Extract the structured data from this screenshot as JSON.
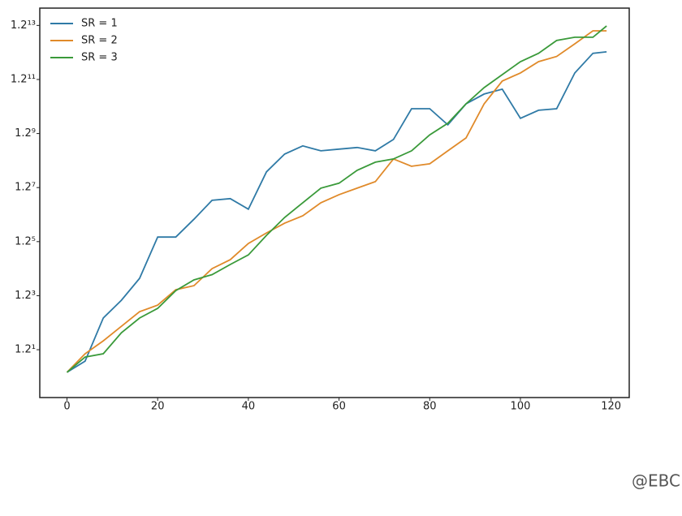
{
  "chart_data": {
    "type": "line",
    "x": [
      0,
      4,
      8,
      12,
      16,
      20,
      24,
      28,
      32,
      36,
      40,
      44,
      48,
      52,
      56,
      60,
      64,
      68,
      72,
      76,
      80,
      84,
      88,
      92,
      96,
      100,
      104,
      108,
      112,
      116,
      119
    ],
    "series": [
      {
        "name": "SR = 1",
        "color": "#2f7aa6",
        "values": [
          1.03,
          1.111,
          1.486,
          1.675,
          1.942,
          2.566,
          2.566,
          2.894,
          3.288,
          3.326,
          3.097,
          3.984,
          4.493,
          4.747,
          4.592,
          4.644,
          4.696,
          4.592,
          4.958,
          6.099,
          6.099,
          5.47,
          6.305,
          6.737,
          6.96,
          5.717,
          6.037,
          6.099,
          7.764,
          8.864,
          8.952
        ]
      },
      {
        "name": "SR = 2",
        "color": "#e08a2a",
        "values": [
          1.03,
          1.168,
          1.274,
          1.405,
          1.551,
          1.621,
          1.799,
          1.849,
          2.074,
          2.202,
          2.458,
          2.638,
          2.817,
          2.961,
          3.234,
          3.416,
          3.569,
          3.73,
          4.347,
          4.138,
          4.207,
          4.592,
          5.01,
          6.305,
          7.35,
          7.764,
          8.381,
          8.678,
          9.451,
          10.316,
          10.316
        ]
      },
      {
        "name": "SR = 3",
        "color": "#3a9a3a",
        "values": [
          1.03,
          1.142,
          1.168,
          1.345,
          1.486,
          1.586,
          1.788,
          1.922,
          1.992,
          2.132,
          2.275,
          2.596,
          2.929,
          3.234,
          3.569,
          3.69,
          4.027,
          4.253,
          4.347,
          4.592,
          5.115,
          5.531,
          6.305,
          7.034,
          7.675,
          8.381,
          8.864,
          9.665,
          9.879,
          9.879,
          10.663
        ]
      }
    ],
    "xlim": [
      -6,
      124
    ],
    "xticks": [
      0,
      20,
      40,
      60,
      80,
      100,
      120
    ],
    "ylim": [
      0.869,
      12.026
    ],
    "log_base": 1.2,
    "yticks": [
      {
        "value": 1.2,
        "label": "1.2¹"
      },
      {
        "value": 1.728,
        "label": "1.2³"
      },
      {
        "value": 2.48832,
        "label": "1.2⁵"
      },
      {
        "value": 3.5831808,
        "label": "1.2⁷"
      },
      {
        "value": 5.159780352,
        "label": "1.2⁹"
      },
      {
        "value": 7.43008370688,
        "label": "1.2¹¹"
      },
      {
        "value": 10.6993205379072,
        "label": "1.2¹³"
      }
    ],
    "grid": false,
    "legend": "upper left",
    "watermark": "@EBC"
  }
}
